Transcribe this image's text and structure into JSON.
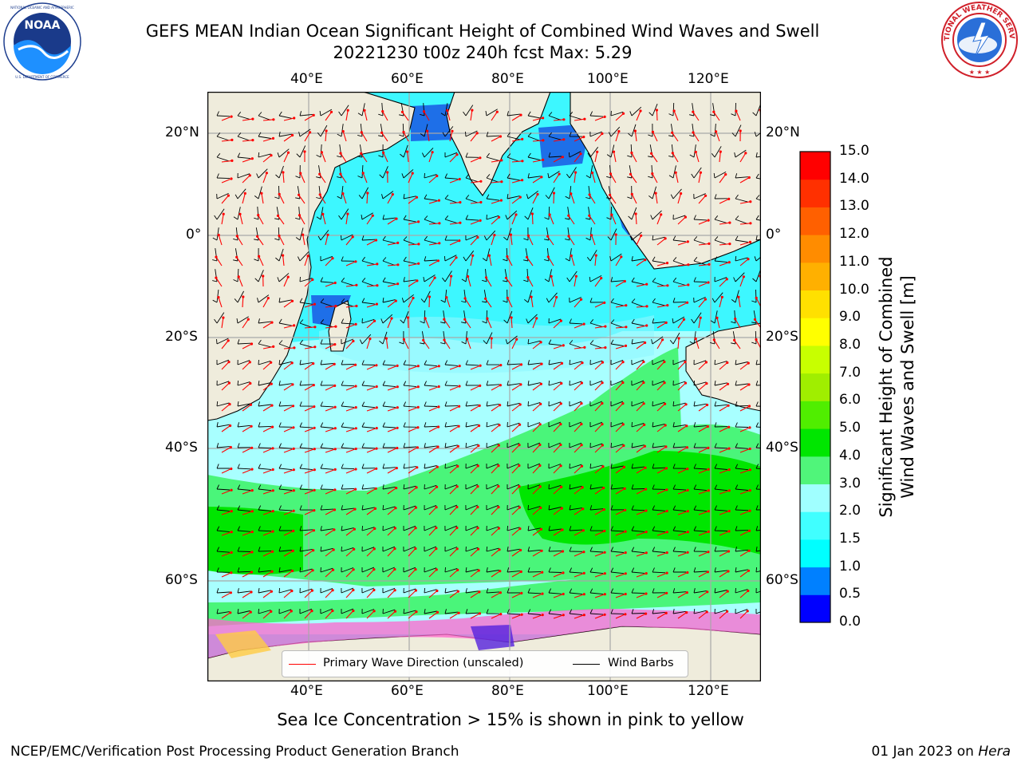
{
  "header": {
    "title_line1": "GEFS MEAN Indian Ocean Significant Height of Combined Wind Waves and Swell",
    "title_line2": "20221230 t00z 240h fcst   Max: 5.29"
  },
  "logos": {
    "left": {
      "name": "noaa-logo",
      "text": "NOAA",
      "ring_text": "NATIONAL OCEANIC AND ATMOSPHERIC ADMINISTRATION · U.S. DEPARTMENT OF COMMERCE"
    },
    "right": {
      "name": "nws-logo",
      "ring_text": "NATIONAL WEATHER SERVICE"
    }
  },
  "map": {
    "lon_ticks_top": [
      "40°E",
      "60°E",
      "80°E",
      "100°E",
      "120°E"
    ],
    "lon_ticks_bottom": [
      "40°E",
      "60°E",
      "80°E",
      "100°E",
      "120°E"
    ],
    "lat_ticks_left": [
      "20°N",
      "0°",
      "20°S",
      "40°S",
      "60°S"
    ],
    "lat_ticks_right": [
      "20°N",
      "0°",
      "20°S",
      "40°S",
      "60°S"
    ],
    "colors": {
      "land": "#efecdc",
      "ocean_low": "#3df7ff",
      "ocean_mid": "#a8ffff",
      "ocean_high": "#4af57a",
      "ocean_peak": "#00e600"
    }
  },
  "legend": {
    "wave_direction": "Primary Wave Direction (unscaled)",
    "wind_barbs": "Wind Barbs",
    "wave_color": "#ff0000",
    "barb_color": "#000000"
  },
  "colorbar": {
    "label_line1": "Significant Height of Combined",
    "label_line2": "Wind Waves and Swell [m]",
    "ticks": [
      "0.0",
      "0.5",
      "1.0",
      "1.5",
      "2.0",
      "3.0",
      "4.0",
      "5.0",
      "6.0",
      "7.0",
      "8.0",
      "9.0",
      "10.0",
      "11.0",
      "12.0",
      "13.0",
      "14.0",
      "15.0"
    ],
    "colors": [
      "#0000ff",
      "#0080ff",
      "#00ffff",
      "#40ffff",
      "#a0ffff",
      "#50f57a",
      "#00e600",
      "#50ee00",
      "#a0ee00",
      "#c8ff00",
      "#ffff00",
      "#ffe000",
      "#ffb000",
      "#ff8c00",
      "#ff6000",
      "#ff3000",
      "#ff0000"
    ]
  },
  "sea_ice_note": "Sea Ice Concentration > 15% is shown in pink to yellow",
  "footer": {
    "left": "NCEP/EMC/Verification Post Processing Product Generation Branch",
    "right_date": "01 Jan 2023 on ",
    "right_host": "Hera"
  }
}
